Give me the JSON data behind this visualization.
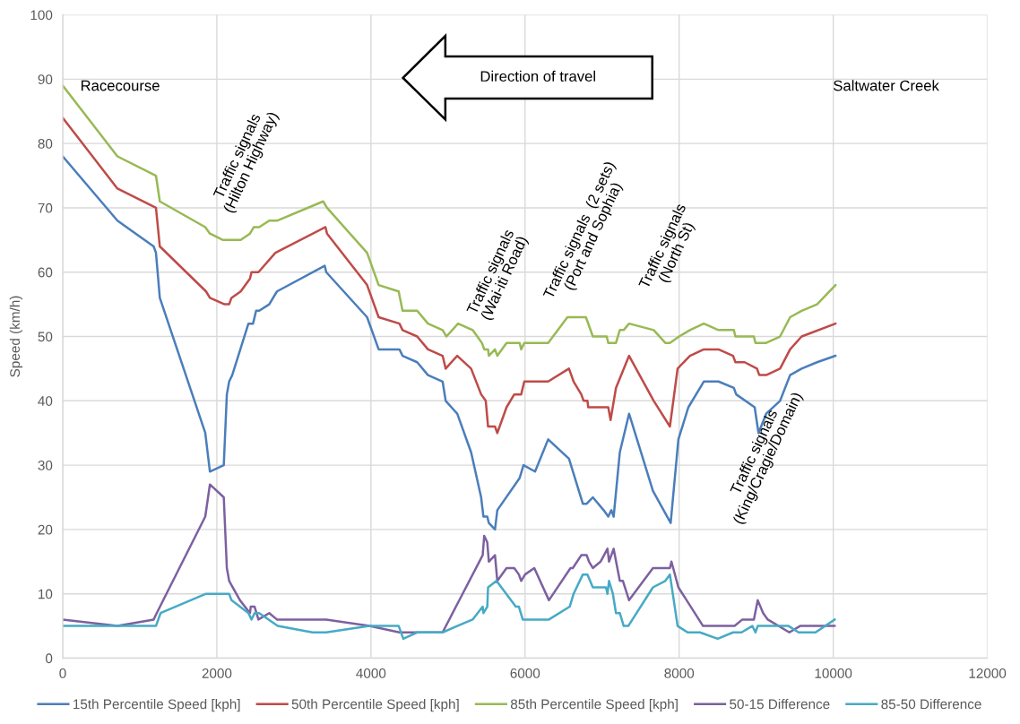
{
  "chart_data": {
    "type": "line",
    "ylabel": "Speed (km/h)",
    "xlim": [
      0,
      12000
    ],
    "xticks": [
      0,
      2000,
      4000,
      6000,
      8000,
      10000,
      12000
    ],
    "ylim": [
      0,
      100
    ],
    "yticks": [
      0,
      10,
      20,
      30,
      40,
      50,
      60,
      70,
      80,
      90,
      100
    ],
    "grid": true,
    "legend": "bottom",
    "series": [
      {
        "name": "15th Percentile Speed [kph]",
        "color": "#4a7ebb",
        "x": [
          0,
          710,
          1180,
          1210,
          1260,
          1850,
          1910,
          2090,
          2130,
          2160,
          2200,
          2410,
          2470,
          2510,
          2550,
          2680,
          2780,
          3400,
          3420,
          3950,
          4100,
          4370,
          4410,
          4600,
          4740,
          4930,
          4970,
          5120,
          5300,
          5430,
          5460,
          5510,
          5530,
          5610,
          5640,
          5930,
          5980,
          6130,
          6300,
          6570,
          6750,
          6800,
          6880,
          7020,
          7080,
          7120,
          7150,
          7230,
          7350,
          7660,
          7890,
          7990,
          8120,
          8320,
          8510,
          8710,
          8740,
          8980,
          9030,
          9130,
          9310,
          9440,
          9590,
          9790,
          10030
        ],
        "values": [
          78,
          68,
          64,
          63,
          56,
          35,
          29,
          30,
          41,
          43,
          44,
          52,
          52,
          54,
          54,
          55,
          57,
          61,
          60,
          53,
          48,
          48,
          47,
          46,
          44,
          43,
          40,
          38,
          32,
          25,
          22,
          22,
          21,
          20,
          23,
          28,
          30,
          29,
          34,
          31,
          24,
          24,
          25,
          23,
          22,
          23,
          22,
          32,
          38,
          26,
          21,
          34,
          39,
          43,
          43,
          42,
          41,
          39,
          35,
          38,
          40,
          44,
          45,
          46,
          47
        ]
      },
      {
        "name": "50th Percentile Speed [kph]",
        "color": "#be4b48",
        "x": [
          0,
          710,
          1210,
          1260,
          1860,
          1910,
          2100,
          2160,
          2190,
          2310,
          2430,
          2450,
          2540,
          2760,
          3410,
          3430,
          3950,
          4100,
          4370,
          4410,
          4600,
          4740,
          4930,
          4970,
          5120,
          5300,
          5430,
          5490,
          5520,
          5610,
          5640,
          5760,
          5860,
          5950,
          5990,
          6300,
          6570,
          6630,
          6730,
          6760,
          6810,
          6820,
          7080,
          7110,
          7180,
          7350,
          7670,
          7880,
          7980,
          8140,
          8320,
          8510,
          8700,
          8730,
          8850,
          9010,
          9040,
          9130,
          9310,
          9440,
          9590,
          10030
        ],
        "values": [
          84,
          73,
          70,
          64,
          57,
          56,
          55,
          55,
          56,
          57,
          59,
          60,
          60,
          63,
          67,
          66,
          58,
          53,
          52,
          51,
          50,
          48,
          47,
          45,
          47,
          45,
          41,
          40,
          36,
          36,
          35,
          39,
          41,
          41,
          43,
          43,
          45,
          43,
          41,
          40,
          40,
          39,
          39,
          37,
          42,
          47,
          40,
          36,
          45,
          47,
          48,
          48,
          47,
          46,
          46,
          45,
          44,
          44,
          45,
          48,
          50,
          52
        ]
      },
      {
        "name": "85th Percentile Speed [kph]",
        "color": "#98b954",
        "x": [
          0,
          710,
          1210,
          1260,
          1850,
          1910,
          2080,
          2310,
          2430,
          2480,
          2550,
          2680,
          2780,
          3380,
          3430,
          3950,
          4100,
          4360,
          4410,
          4600,
          4740,
          4930,
          4980,
          5130,
          5320,
          5440,
          5470,
          5520,
          5530,
          5610,
          5640,
          5760,
          5930,
          5950,
          5990,
          6300,
          6550,
          6790,
          6880,
          7060,
          7080,
          7180,
          7230,
          7280,
          7350,
          7670,
          7820,
          7880,
          8000,
          8140,
          8320,
          8510,
          8710,
          8730,
          8970,
          8990,
          9130,
          9310,
          9440,
          9590,
          9790,
          10030
        ],
        "values": [
          89,
          78,
          75,
          71,
          67,
          66,
          65,
          65,
          66,
          67,
          67,
          68,
          68,
          71,
          70,
          63,
          58,
          57,
          54,
          54,
          52,
          51,
          50,
          52,
          51,
          49,
          48,
          48,
          47,
          48,
          47,
          49,
          49,
          48,
          49,
          49,
          53,
          53,
          50,
          50,
          49,
          49,
          51,
          51,
          52,
          51,
          49,
          49,
          50,
          51,
          52,
          51,
          51,
          50,
          50,
          49,
          49,
          50,
          53,
          54,
          55,
          58
        ]
      },
      {
        "name": "50-15 Difference",
        "color": "#7d60a0",
        "x": [
          0,
          710,
          1180,
          1220,
          1850,
          1910,
          2090,
          2130,
          2160,
          2300,
          2430,
          2440,
          2490,
          2540,
          2680,
          2780,
          3420,
          3980,
          4370,
          4930,
          5450,
          5470,
          5510,
          5530,
          5610,
          5640,
          5760,
          5860,
          5920,
          5950,
          6000,
          6120,
          6310,
          6590,
          6620,
          6730,
          6800,
          6830,
          6880,
          6980,
          7070,
          7090,
          7150,
          7230,
          7270,
          7350,
          7660,
          7880,
          7900,
          7990,
          8310,
          8720,
          8820,
          8970,
          9020,
          9090,
          9150,
          9430,
          9570,
          10020
        ],
        "values": [
          6,
          5,
          6,
          7,
          22,
          27,
          25,
          14,
          12,
          9,
          7,
          8,
          8,
          6,
          7,
          6,
          6,
          5,
          4,
          4,
          16,
          19,
          18,
          15,
          16,
          12,
          14,
          14,
          13,
          12,
          13,
          14,
          9,
          14,
          14,
          16,
          16,
          15,
          14,
          15,
          17,
          15,
          17,
          12,
          12,
          9,
          14,
          14,
          15,
          11,
          5,
          5,
          6,
          6,
          9,
          7,
          6,
          4,
          5,
          5
        ]
      },
      {
        "name": "85-50 Difference",
        "color": "#46aac5",
        "x": [
          0,
          1210,
          1270,
          1860,
          2160,
          2190,
          2410,
          2450,
          2490,
          2550,
          2790,
          3240,
          3420,
          3980,
          4360,
          4420,
          4600,
          4930,
          5120,
          5320,
          5450,
          5460,
          5510,
          5520,
          5630,
          5880,
          5920,
          5970,
          6310,
          6580,
          6630,
          6750,
          6810,
          6880,
          7050,
          7070,
          7090,
          7140,
          7180,
          7230,
          7280,
          7340,
          7660,
          7820,
          7880,
          7980,
          8110,
          8270,
          8500,
          8700,
          8810,
          8950,
          8990,
          9020,
          9420,
          9550,
          9770,
          10020
        ],
        "values": [
          5,
          5,
          7,
          10,
          10,
          9,
          7,
          6,
          7,
          7,
          5,
          4,
          4,
          5,
          5,
          3,
          4,
          4,
          5,
          6,
          8,
          7,
          8,
          11,
          12,
          8,
          8,
          6,
          6,
          8,
          10,
          13,
          13,
          11,
          11,
          10,
          12,
          10,
          7,
          7,
          5,
          5,
          11,
          12,
          13,
          5,
          4,
          4,
          3,
          4,
          4,
          5,
          4,
          5,
          5,
          4,
          4,
          6
        ]
      }
    ],
    "annotations": [
      "Racecourse",
      "Direction of travel",
      "Saltwater Creek",
      "Traffic signals\n(Hilton Highway)",
      "Traffic signals\n(Wai-iti Road)",
      "Traffic signals  (2 sets)\n(Port and Sophia)",
      "Traffic signals\n(North St)",
      "Traffic signals\n(King/Cragie/Domain)"
    ]
  }
}
